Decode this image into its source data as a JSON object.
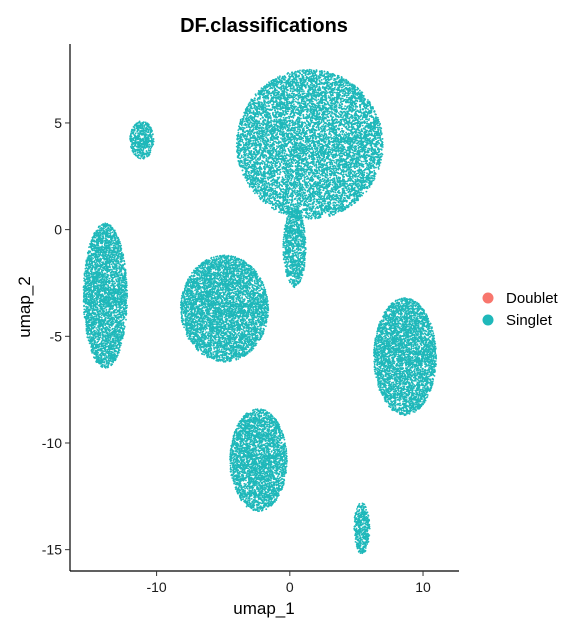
{
  "chart_data": {
    "type": "scatter",
    "title": "DF.classifications",
    "xlabel": "umap_1",
    "ylabel": "umap_2",
    "xlim": [
      -16.5,
      12.7
    ],
    "ylim": [
      -16.0,
      8.7
    ],
    "x_ticks": [
      -10,
      0,
      10
    ],
    "y_ticks": [
      5,
      0,
      -5,
      -10,
      -15
    ],
    "x_tick_labels": [
      "-10",
      "0",
      "10"
    ],
    "y_tick_labels": [
      "5",
      "0",
      "-5",
      "-10",
      "-15"
    ],
    "grid": false,
    "legend_position": "right",
    "series": [
      {
        "name": "Doublet",
        "color": "#F8766D",
        "points": []
      },
      {
        "name": "Singlet",
        "color": "#1FB8BA",
        "clusters": [
          {
            "label": "large upper cluster",
            "center": [
              2.0,
              4.8
            ],
            "x_range": [
              -4.0,
              7.0
            ],
            "y_range": [
              0.5,
              7.5
            ]
          },
          {
            "label": "upper cluster tail",
            "center": [
              0.3,
              -1.0
            ],
            "x_range": [
              -0.5,
              1.2
            ],
            "y_range": [
              -2.7,
              1.0
            ]
          },
          {
            "label": "small upper-left cluster",
            "center": [
              -11.0,
              4.2
            ],
            "x_range": [
              -12.0,
              -10.2
            ],
            "y_range": [
              3.3,
              5.1
            ]
          },
          {
            "label": "left elongated cluster",
            "center": [
              -14.0,
              -3.5
            ],
            "x_range": [
              -15.5,
              -12.2
            ],
            "y_range": [
              -6.5,
              0.3
            ]
          },
          {
            "label": "middle-left cluster",
            "center": [
              -5.0,
              -3.5
            ],
            "x_range": [
              -8.2,
              -1.6
            ],
            "y_range": [
              -6.2,
              -1.2
            ]
          },
          {
            "label": "right elongated cluster",
            "center": [
              7.2,
              -6.0
            ],
            "x_range": [
              6.3,
              11.0
            ],
            "y_range": [
              -8.7,
              -3.2
            ]
          },
          {
            "label": "lower cluster",
            "center": [
              -2.5,
              -11.0
            ],
            "x_range": [
              -4.5,
              -0.2
            ],
            "y_range": [
              -13.2,
              -8.4
            ]
          },
          {
            "label": "small bottom cluster",
            "center": [
              5.5,
              -14.0
            ],
            "x_range": [
              4.8,
              6.0
            ],
            "y_range": [
              -15.2,
              -12.8
            ]
          }
        ]
      }
    ]
  }
}
